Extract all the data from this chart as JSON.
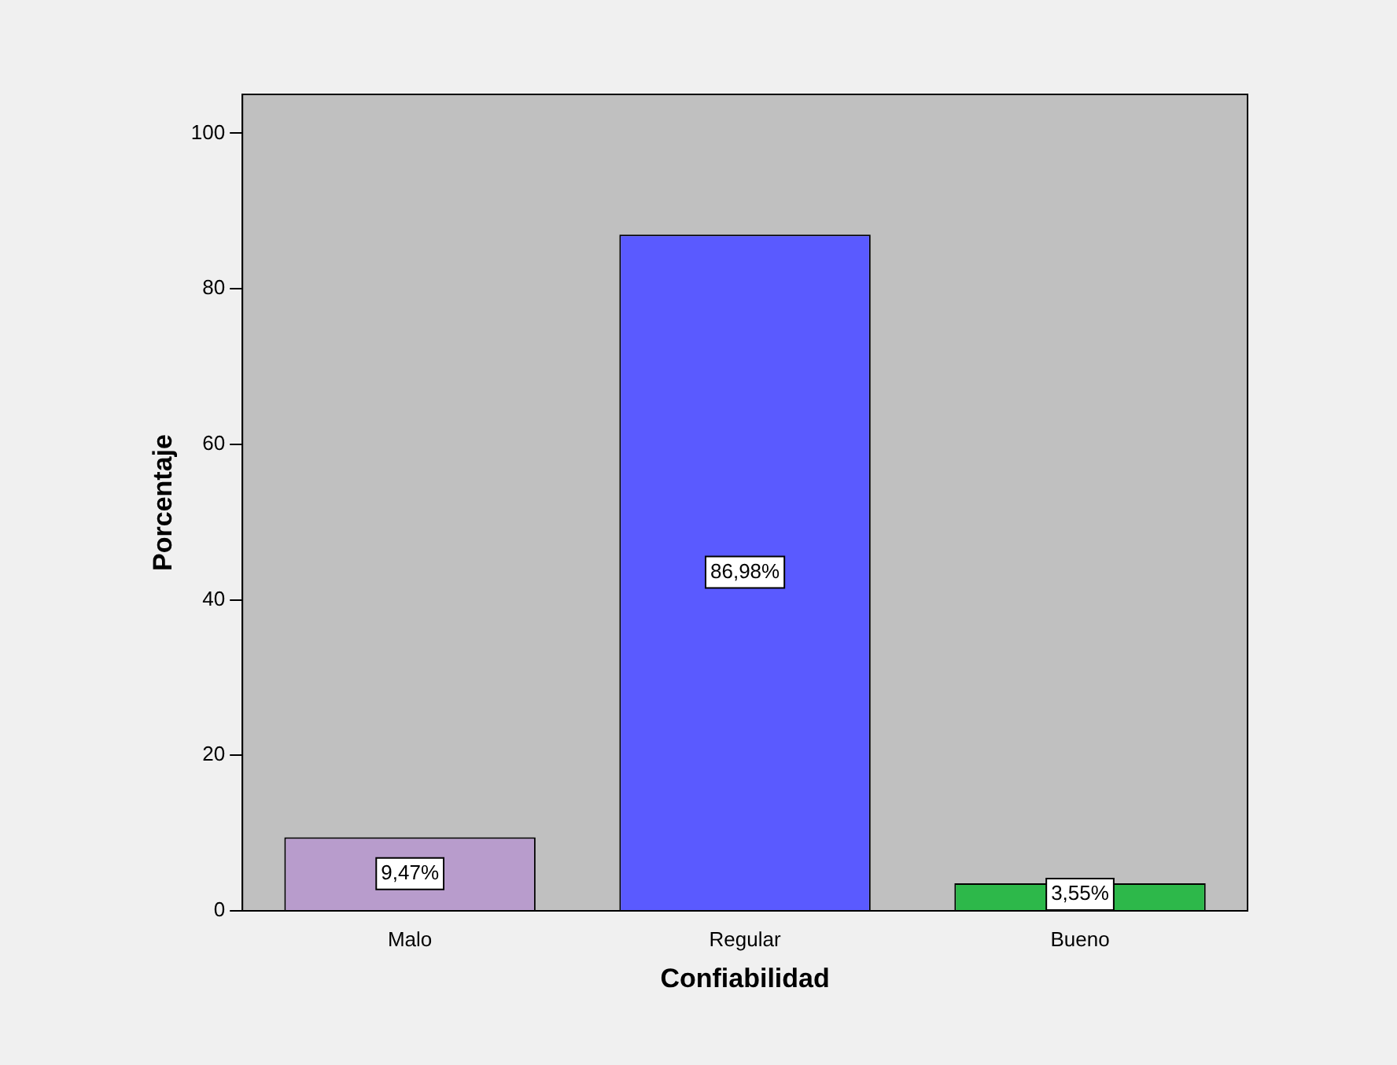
{
  "chart_data": {
    "type": "bar",
    "xlabel": "Confiabilidad",
    "ylabel": "Porcentaje",
    "categories": [
      "Malo",
      "Regular",
      "Bueno"
    ],
    "values": [
      9.47,
      86.98,
      3.55
    ],
    "colors": [
      "#b89ccc",
      "#5a5aff",
      "#2db84a"
    ],
    "value_labels": [
      "9,47%",
      "86,98%",
      "3,55%"
    ],
    "ylim": [
      0,
      105
    ],
    "yticks": [
      0,
      20,
      40,
      60,
      80,
      100
    ],
    "grid": false,
    "legend": false
  }
}
